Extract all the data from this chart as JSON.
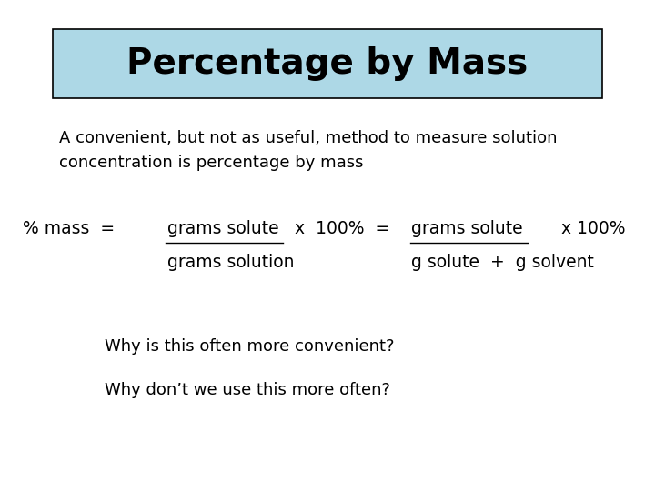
{
  "title": "Percentage by Mass",
  "title_bg_color": "#add8e6",
  "title_border_color": "#000000",
  "background_color": "#ffffff",
  "text_color": "#000000",
  "subtitle_line1": "A convenient, but not as useful, method to measure solution",
  "subtitle_line2": "concentration is percentage by mass",
  "formula_prefix": "% mass  =",
  "formula_left_numerator": "grams solute",
  "formula_left_middle": "  x  100%  =",
  "formula_right_numerator": "grams solute",
  "formula_right_suffix": "      x 100%",
  "formula_left_denominator": "grams solution",
  "formula_right_denominator": "g solute  +  g solvent",
  "question1": "Why is this often more convenient?",
  "question2": "Why don’t we use this more often?"
}
